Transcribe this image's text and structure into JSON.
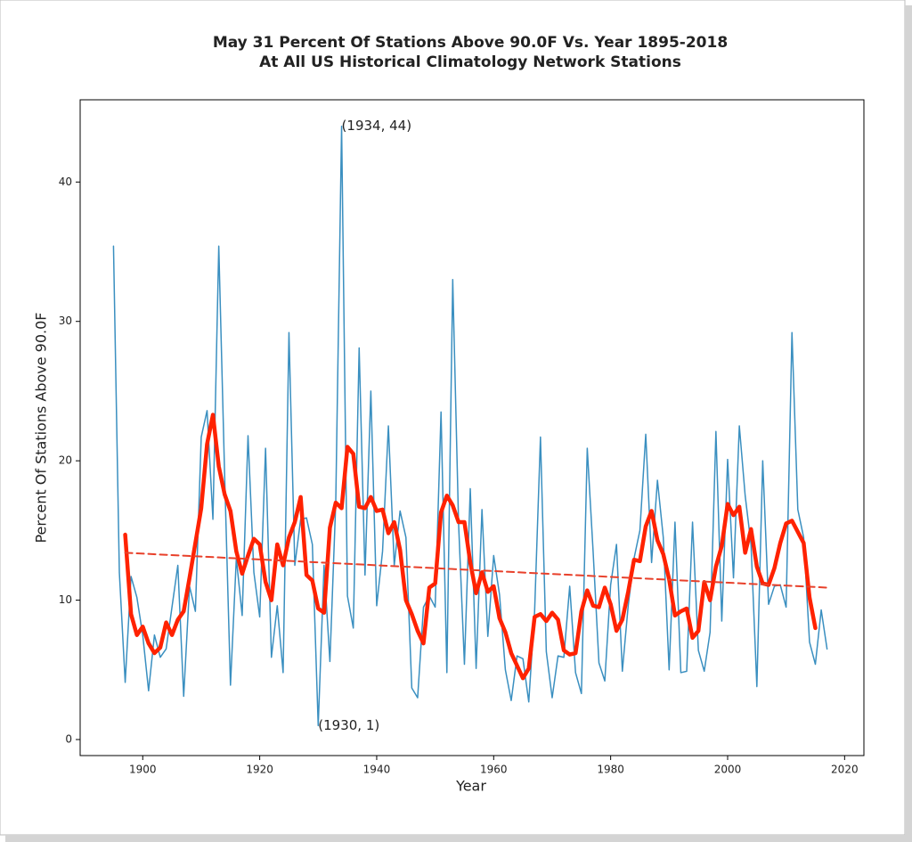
{
  "chart_data": {
    "type": "line",
    "title": "May 31 Percent Of Stations Above 90.0F Vs. Year 1895-2018",
    "subtitle": "At All US Historical Climatology Network Stations",
    "xlabel": "Year",
    "ylabel": "Percent Of Stations Above 90.0F",
    "xlim": [
      1889.3,
      2023.3
    ],
    "ylim": [
      -1.15,
      45.9
    ],
    "xticks": [
      1900,
      1920,
      1940,
      1960,
      1980,
      2000,
      2020
    ],
    "yticks": [
      0,
      10,
      20,
      30,
      40
    ],
    "grid": false,
    "series": [
      {
        "color": "#3a8fc0",
        "width": 1.5,
        "dash": false,
        "x": [
          1895,
          1896,
          1897,
          1898,
          1899,
          1900,
          1901,
          1902,
          1903,
          1904,
          1905,
          1906,
          1907,
          1908,
          1909,
          1910,
          1911,
          1912,
          1913,
          1914,
          1915,
          1916,
          1917,
          1918,
          1919,
          1920,
          1921,
          1922,
          1923,
          1924,
          1925,
          1926,
          1927,
          1928,
          1929,
          1930,
          1931,
          1932,
          1933,
          1934,
          1935,
          1936,
          1937,
          1938,
          1939,
          1940,
          1941,
          1942,
          1943,
          1944,
          1945,
          1946,
          1947,
          1948,
          1949,
          1950,
          1951,
          1952,
          1953,
          1954,
          1955,
          1956,
          1957,
          1958,
          1959,
          1960,
          1961,
          1962,
          1963,
          1964,
          1965,
          1966,
          1967,
          1968,
          1969,
          1970,
          1971,
          1972,
          1973,
          1974,
          1975,
          1976,
          1977,
          1978,
          1979,
          1980,
          1981,
          1982,
          1983,
          1984,
          1985,
          1986,
          1987,
          1988,
          1989,
          1990,
          1991,
          1992,
          1993,
          1994,
          1995,
          1996,
          1997,
          1998,
          1999,
          2000,
          2001,
          2002,
          2003,
          2004,
          2005,
          2006,
          2007,
          2008,
          2009,
          2010,
          2011,
          2012,
          2013,
          2014,
          2015,
          2016,
          2017
        ],
        "values": [
          35.4,
          12,
          4.1,
          11.7,
          10.2,
          7.5,
          3.5,
          7.5,
          5.9,
          6.5,
          9.5,
          12.5,
          3.1,
          11,
          9.2,
          21.7,
          23.6,
          15.8,
          35.4,
          19,
          3.9,
          13,
          8.9,
          21.8,
          12,
          8.8,
          20.9,
          5.9,
          9.6,
          4.8,
          29.2,
          12.5,
          15.8,
          15.9,
          14,
          1,
          12.5,
          5.6,
          17,
          44,
          10.3,
          8,
          28.1,
          11.8,
          25,
          9.6,
          13.5,
          22.5,
          12.5,
          16.4,
          14.5,
          3.7,
          3,
          9.5,
          10.3,
          9.5,
          23.5,
          4.8,
          33,
          15.5,
          5.4,
          18,
          5.1,
          16.5,
          7.4,
          13.2,
          10.4,
          5,
          2.8,
          6,
          5.8,
          2.7,
          9.2,
          21.7,
          6.3,
          3,
          6,
          5.9,
          11,
          4.8,
          3.3,
          20.9,
          13.5,
          5.5,
          4.2,
          11.1,
          14,
          4.9,
          9.6,
          13,
          15,
          21.9,
          12.7,
          18.6,
          14.5,
          5,
          15.6,
          4.8,
          4.9,
          15.6,
          6.4,
          4.9,
          7.7,
          22.1,
          8.5,
          20.1,
          11.6,
          22.5,
          17.5,
          14,
          3.8,
          20,
          9.7,
          11,
          11.1,
          9.5,
          29.2,
          16.5,
          14.5,
          7,
          5.4,
          9.3,
          6.5
        ]
      },
      {
        "color": "#ff2200",
        "width": 4.5,
        "dash": false,
        "x": [
          1897,
          1898,
          1899,
          1900,
          1901,
          1902,
          1903,
          1904,
          1905,
          1906,
          1907,
          1908,
          1909,
          1910,
          1911,
          1912,
          1913,
          1914,
          1915,
          1916,
          1917,
          1918,
          1919,
          1920,
          1921,
          1922,
          1923,
          1924,
          1925,
          1926,
          1927,
          1928,
          1929,
          1930,
          1931,
          1932,
          1933,
          1934,
          1935,
          1936,
          1937,
          1938,
          1939,
          1940,
          1941,
          1942,
          1943,
          1944,
          1945,
          1946,
          1947,
          1948,
          1949,
          1950,
          1951,
          1952,
          1953,
          1954,
          1955,
          1956,
          1957,
          1958,
          1959,
          1960,
          1961,
          1962,
          1963,
          1964,
          1965,
          1966,
          1967,
          1968,
          1969,
          1970,
          1971,
          1972,
          1973,
          1974,
          1975,
          1976,
          1977,
          1978,
          1979,
          1980,
          1981,
          1982,
          1983,
          1984,
          1985,
          1986,
          1987,
          1988,
          1989,
          1990,
          1991,
          1992,
          1993,
          1994,
          1995,
          1996,
          1997,
          1998,
          1999,
          2000,
          2001,
          2002,
          2003,
          2004,
          2005,
          2006,
          2007,
          2008,
          2009,
          2010,
          2011,
          2012,
          2013,
          2014,
          2015
        ],
        "values": [
          14.7,
          9,
          7.5,
          8.1,
          6.9,
          6.2,
          6.6,
          8.4,
          7.5,
          8.6,
          9.2,
          11.6,
          14.1,
          16.6,
          21.2,
          23.3,
          19.6,
          17.6,
          16.4,
          13.5,
          11.9,
          13.2,
          14.4,
          14,
          11.3,
          10,
          14,
          12.5,
          14.5,
          15.6,
          17.4,
          11.8,
          11.4,
          9.4,
          9.1,
          15.2,
          17,
          16.6,
          21,
          20.5,
          16.7,
          16.6,
          17.4,
          16.4,
          16.5,
          14.8,
          15.6,
          13.6,
          10,
          9,
          7.8,
          6.9,
          10.9,
          11.2,
          16.3,
          17.5,
          16.8,
          15.6,
          15.6,
          12.7,
          10.5,
          12,
          10.6,
          11,
          8.7,
          7.7,
          6.2,
          5.3,
          4.4,
          5.1,
          8.8,
          9,
          8.5,
          9.1,
          8.6,
          6.4,
          6.1,
          6.2,
          9.2,
          10.7,
          9.6,
          9.5,
          10.9,
          9.7,
          7.8,
          8.6,
          10.6,
          12.9,
          12.8,
          15.3,
          16.4,
          14.3,
          13.3,
          11.5,
          8.9,
          9.2,
          9.4,
          7.3,
          7.8,
          11.3,
          10,
          12.4,
          13.9,
          16.9,
          16.1,
          16.7,
          13.4,
          15.1,
          12.4,
          11.2,
          11.1,
          12.3,
          14.1,
          15.5,
          15.7,
          14.9,
          14.1,
          10.2,
          8
        ]
      },
      {
        "color": "#e8402a",
        "width": 2,
        "dash": true,
        "x": [
          1897,
          2017
        ],
        "values": [
          13.4,
          10.9
        ]
      }
    ],
    "annotations": [
      {
        "text": "(1934, 44)",
        "x": 1934,
        "y": 44
      },
      {
        "text": "(1930, 1)",
        "x": 1930,
        "y": 1
      }
    ]
  }
}
